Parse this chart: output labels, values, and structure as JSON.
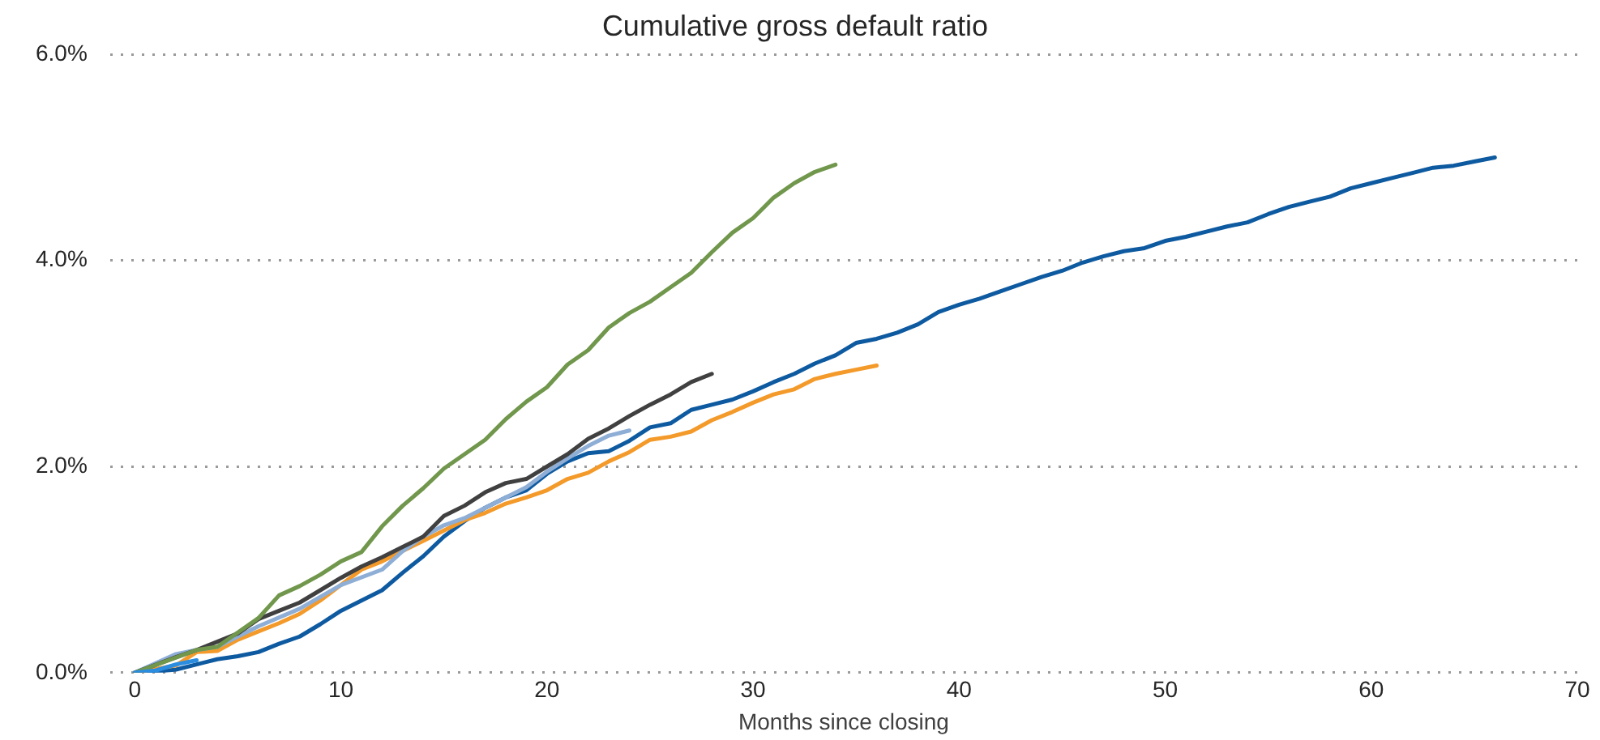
{
  "chart_data": {
    "type": "line",
    "title": "Cumulative gross default ratio",
    "xlabel": "Months since closing",
    "xlim": [
      -1.2,
      70
    ],
    "xticks": [
      0,
      10,
      20,
      30,
      40,
      50,
      60,
      70
    ],
    "ylim": [
      0,
      6
    ],
    "yticks": [
      {
        "value": 0,
        "label": "0.0%"
      },
      {
        "value": 2,
        "label": "2.0%"
      },
      {
        "value": 4,
        "label": "4.0%"
      },
      {
        "value": 6,
        "label": "6.0%"
      }
    ],
    "grid": "y",
    "legend": false,
    "marker": "none",
    "line_style": "solid",
    "series": [
      {
        "color": "#0e5aa0",
        "x": [
          0,
          1,
          2,
          3,
          4,
          5,
          6,
          7,
          8,
          9,
          10,
          11,
          12,
          13,
          14,
          15,
          16,
          17,
          18,
          19,
          20,
          21,
          22,
          23,
          24,
          25,
          26,
          27,
          28,
          29,
          30,
          31,
          32,
          33,
          34,
          35,
          36,
          37,
          38,
          39,
          40,
          41,
          42,
          43,
          44,
          45,
          46,
          47,
          48,
          49,
          50,
          51,
          52,
          53,
          54,
          55,
          56,
          57,
          58,
          59,
          60,
          61,
          62,
          63,
          64,
          65,
          66
        ],
        "values": [
          0,
          0.01,
          0.03,
          0.08,
          0.13,
          0.16,
          0.2,
          0.28,
          0.35,
          0.47,
          0.6,
          0.7,
          0.8,
          0.97,
          1.13,
          1.32,
          1.47,
          1.6,
          1.7,
          1.77,
          1.93,
          2.05,
          2.13,
          2.15,
          2.25,
          2.38,
          2.42,
          2.55,
          2.6,
          2.65,
          2.73,
          2.82,
          2.9,
          3.0,
          3.08,
          3.2,
          3.24,
          3.3,
          3.38,
          3.5,
          3.57,
          3.63,
          3.7,
          3.77,
          3.84,
          3.9,
          3.98,
          4.04,
          4.09,
          4.12,
          4.19,
          4.23,
          4.28,
          4.33,
          4.37,
          4.45,
          4.52,
          4.57,
          4.62,
          4.7,
          4.75,
          4.8,
          4.85,
          4.9,
          4.92,
          4.96,
          5.0
        ]
      },
      {
        "color": "#f39a2a",
        "x": [
          0,
          2,
          3,
          4,
          5,
          6,
          7,
          8,
          9,
          10,
          11,
          12,
          13,
          14,
          15,
          16,
          17,
          18,
          19,
          20,
          21,
          22,
          23,
          24,
          25,
          26,
          27,
          28,
          29,
          30,
          31,
          32,
          33,
          34,
          35,
          36
        ],
        "values": [
          0,
          0.07,
          0.2,
          0.21,
          0.32,
          0.4,
          0.48,
          0.57,
          0.7,
          0.85,
          1.0,
          1.08,
          1.18,
          1.28,
          1.38,
          1.48,
          1.55,
          1.64,
          1.7,
          1.77,
          1.88,
          1.94,
          2.05,
          2.14,
          2.26,
          2.29,
          2.34,
          2.45,
          2.53,
          2.62,
          2.7,
          2.75,
          2.85,
          2.9,
          2.94,
          2.98
        ]
      },
      {
        "color": "#8eaed6",
        "x": [
          0,
          2,
          3,
          4,
          6,
          8,
          10,
          12,
          13,
          14,
          15,
          16,
          17,
          18,
          19,
          20,
          21,
          22,
          23,
          24
        ],
        "values": [
          0,
          0.18,
          0.22,
          0.25,
          0.45,
          0.62,
          0.85,
          1.0,
          1.18,
          1.32,
          1.43,
          1.5,
          1.6,
          1.7,
          1.8,
          1.95,
          2.08,
          2.2,
          2.3,
          2.35
        ]
      },
      {
        "color": "#404040",
        "x": [
          0,
          2,
          3,
          4,
          5,
          6,
          7,
          8,
          9,
          10,
          11,
          12,
          13,
          14,
          15,
          16,
          17,
          18,
          19,
          20,
          21,
          22,
          23,
          24,
          25,
          26,
          27,
          28
        ],
        "values": [
          0,
          0.15,
          0.22,
          0.3,
          0.38,
          0.52,
          0.6,
          0.68,
          0.8,
          0.92,
          1.03,
          1.12,
          1.22,
          1.32,
          1.52,
          1.62,
          1.75,
          1.84,
          1.88,
          2.0,
          2.12,
          2.27,
          2.37,
          2.49,
          2.6,
          2.7,
          2.82,
          2.9
        ]
      },
      {
        "color": "#70974c",
        "x": [
          0,
          3,
          4,
          6,
          7,
          8,
          9,
          10,
          11,
          12,
          13,
          14,
          15,
          16,
          17,
          18,
          19,
          20,
          21,
          22,
          23,
          24,
          25,
          26,
          27,
          28,
          29,
          30,
          31,
          32,
          33,
          34
        ],
        "values": [
          0,
          0.22,
          0.25,
          0.53,
          0.75,
          0.84,
          0.95,
          1.08,
          1.17,
          1.42,
          1.62,
          1.79,
          1.98,
          2.12,
          2.26,
          2.46,
          2.63,
          2.77,
          2.99,
          3.13,
          3.35,
          3.49,
          3.6,
          3.74,
          3.88,
          4.08,
          4.27,
          4.41,
          4.61,
          4.75,
          4.86,
          4.93
        ]
      },
      {
        "color": "#2b8de0",
        "x": [
          0,
          1,
          2,
          3
        ],
        "values": [
          0,
          0.02,
          0.08,
          0.12
        ]
      }
    ]
  }
}
